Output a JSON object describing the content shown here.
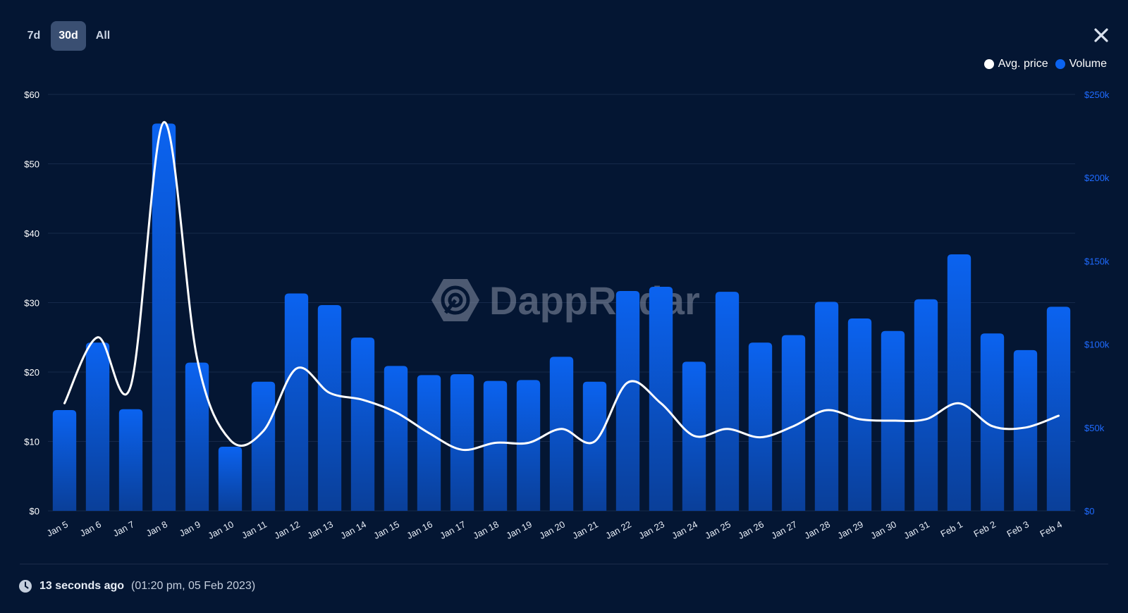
{
  "tabs": [
    {
      "label": "7d",
      "active": false
    },
    {
      "label": "30d",
      "active": true
    },
    {
      "label": "All",
      "active": false
    }
  ],
  "icons": {
    "close": "close-icon",
    "clock": "clock-icon"
  },
  "colors": {
    "background": "#041633",
    "bar_top": "#0b63f0",
    "bar_bottom": "#0a3f99",
    "price_line": "#ffffff",
    "volume_axis": "#1f6bff",
    "watermark": "#8a93a6"
  },
  "watermark": {
    "text": "DappRadar"
  },
  "footer": {
    "relative": "13 seconds ago",
    "absolute": "(01:20 pm, 05 Feb 2023)"
  },
  "chart_data": {
    "type": "bar",
    "categories": [
      "Jan 5",
      "Jan 6",
      "Jan 7",
      "Jan 8",
      "Jan 9",
      "Jan 10",
      "Jan 11",
      "Jan 12",
      "Jan 13",
      "Jan 14",
      "Jan 15",
      "Jan 16",
      "Jan 17",
      "Jan 18",
      "Jan 19",
      "Jan 20",
      "Jan 21",
      "Jan 22",
      "Jan 23",
      "Jan 24",
      "Jan 25",
      "Jan 26",
      "Jan 27",
      "Jan 28",
      "Jan 29",
      "Jan 30",
      "Jan 31",
      "Feb 1",
      "Feb 2",
      "Feb 3",
      "Feb 4"
    ],
    "series": [
      {
        "name": "Volume",
        "type": "bar",
        "axis": "right",
        "values": [
          60500,
          101000,
          61000,
          232500,
          89000,
          38500,
          77500,
          130500,
          123500,
          104000,
          87000,
          81500,
          82000,
          78000,
          78500,
          92500,
          77500,
          132000,
          134500,
          89500,
          131500,
          101000,
          105500,
          125500,
          115500,
          108000,
          127000,
          154000,
          106500,
          96500,
          122500
        ]
      },
      {
        "name": "Avg. price",
        "type": "line",
        "axis": "left",
        "values": [
          15.5,
          25,
          18,
          56,
          22,
          10.2,
          11.5,
          20.5,
          17,
          16,
          14.2,
          11.2,
          8.8,
          9.8,
          9.8,
          11.8,
          10,
          18.5,
          15.5,
          10.8,
          11.8,
          10.6,
          12.2,
          14.5,
          13.2,
          13,
          13.2,
          15.5,
          12.2,
          12,
          13.7
        ]
      }
    ],
    "y_left": {
      "ticks": [
        "$0",
        "$10",
        "$20",
        "$30",
        "$40",
        "$50",
        "$60"
      ],
      "ylim": [
        0,
        60
      ]
    },
    "y_right": {
      "ticks": [
        "$0",
        "$50k",
        "$100k",
        "$150k",
        "$200k",
        "$250k"
      ],
      "ylim": [
        0,
        250000
      ]
    },
    "legend": {
      "position": "top-right",
      "entries": [
        {
          "label": "Avg. price",
          "color": "#ffffff"
        },
        {
          "label": "Volume",
          "color": "#0b63f0"
        }
      ]
    },
    "grid": true
  }
}
